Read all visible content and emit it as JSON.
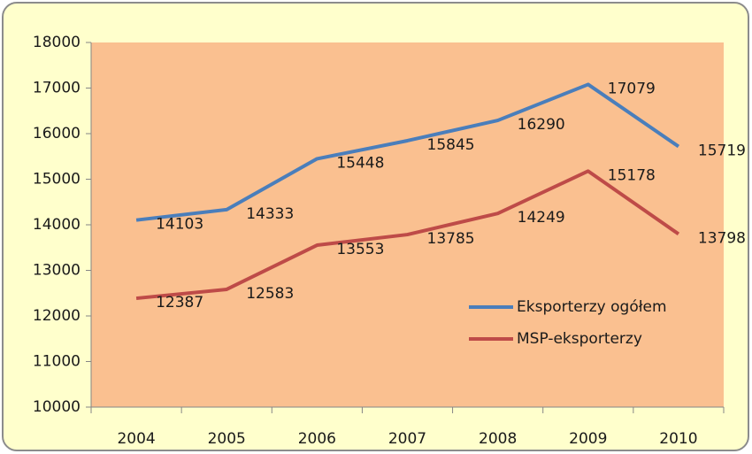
{
  "chart_data": {
    "type": "line",
    "categories": [
      "2004",
      "2005",
      "2006",
      "2007",
      "2008",
      "2009",
      "2010"
    ],
    "series": [
      {
        "name": "Eksporterzy ogółem",
        "color": "#4a7ebb",
        "values": [
          14103,
          14333,
          15448,
          15845,
          16290,
          17079,
          15719
        ]
      },
      {
        "name": "MSP-eksporterzy",
        "color": "#be4b48",
        "values": [
          12387,
          12583,
          13553,
          13785,
          14249,
          15178,
          13798
        ]
      }
    ],
    "ylim": [
      10000,
      18000
    ],
    "yticks": [
      10000,
      11000,
      12000,
      13000,
      14000,
      15000,
      16000,
      17000,
      18000
    ],
    "grid": false,
    "legend": "right",
    "plot_background": "#fac090",
    "background": "#ffffcc"
  }
}
